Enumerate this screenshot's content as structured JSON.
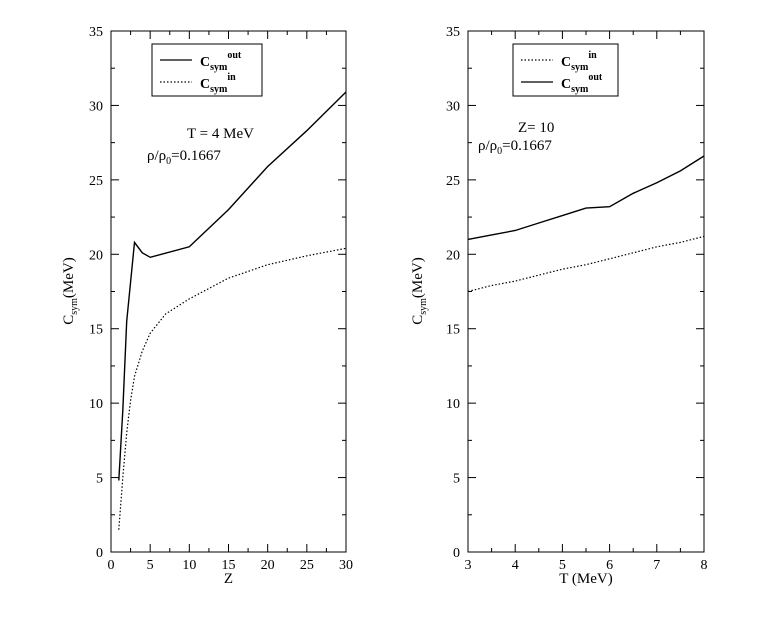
{
  "chart_data": [
    {
      "type": "line",
      "xlabel": "Z",
      "ylabel": "C",
      "ylabel_sub": "sym",
      "ylabel_unit": "(MeV)",
      "xlim": [
        0,
        30
      ],
      "ylim": [
        0,
        35
      ],
      "x_ticks": [
        0,
        5,
        10,
        15,
        20,
        25,
        30
      ],
      "y_ticks": [
        0,
        5,
        10,
        15,
        20,
        25,
        30,
        35
      ],
      "annotation": {
        "line1": "T = 4 MeV",
        "line2_prefix": "ρ/ρ",
        "line2_sub": "0",
        "line2_suffix": "=0.1667"
      },
      "legend_position": "top-center",
      "series": [
        {
          "name": "C_sym^out",
          "legend_base": "C",
          "legend_sub": "sym",
          "legend_sup": "out",
          "style": "solid",
          "x": [
            1,
            1.5,
            2,
            3,
            4,
            5,
            10,
            15,
            20,
            25,
            30
          ],
          "y": [
            4.8,
            9.5,
            15.5,
            20.8,
            20.1,
            19.8,
            20.5,
            23.0,
            25.9,
            28.3,
            30.9
          ]
        },
        {
          "name": "C_sym^in",
          "legend_base": "C",
          "legend_sub": "sym",
          "legend_sup": "in",
          "style": "dotted",
          "x": [
            1,
            1.5,
            2,
            2.5,
            3,
            4,
            5,
            7,
            10,
            15,
            20,
            25,
            30
          ],
          "y": [
            1.5,
            5.0,
            8.0,
            10.2,
            11.8,
            13.5,
            14.7,
            16.0,
            17.0,
            18.4,
            19.3,
            19.9,
            20.4
          ]
        }
      ]
    },
    {
      "type": "line",
      "xlabel": "T (MeV)",
      "ylabel": "C",
      "ylabel_sub": "sym",
      "ylabel_unit": "(MeV)",
      "xlim": [
        3,
        8
      ],
      "ylim": [
        0,
        35
      ],
      "x_ticks": [
        3,
        4,
        5,
        6,
        7,
        8
      ],
      "y_ticks": [
        0,
        5,
        10,
        15,
        20,
        25,
        30,
        35
      ],
      "annotation": {
        "line1": "Z= 10",
        "line2_prefix": "ρ/ρ",
        "line2_sub": "0",
        "line2_suffix": "=0.1667"
      },
      "legend_position": "top-left",
      "series": [
        {
          "name": "C_sym^in",
          "legend_base": "C",
          "legend_sub": "sym",
          "legend_sup": "in",
          "style": "dotted",
          "x": [
            3,
            3.5,
            4,
            4.5,
            5,
            5.5,
            6,
            6.5,
            7,
            7.5,
            8
          ],
          "y": [
            17.5,
            17.9,
            18.2,
            18.6,
            19.0,
            19.3,
            19.7,
            20.1,
            20.5,
            20.8,
            21.2
          ]
        },
        {
          "name": "C_sym^out",
          "legend_base": "C",
          "legend_sub": "sym",
          "legend_sup": "out",
          "style": "solid",
          "x": [
            3,
            3.5,
            4,
            4.5,
            5,
            5.5,
            6,
            6.5,
            7,
            7.5,
            8
          ],
          "y": [
            21.0,
            21.3,
            21.6,
            22.1,
            22.6,
            23.1,
            23.2,
            24.1,
            24.8,
            25.6,
            26.6
          ]
        }
      ]
    }
  ]
}
